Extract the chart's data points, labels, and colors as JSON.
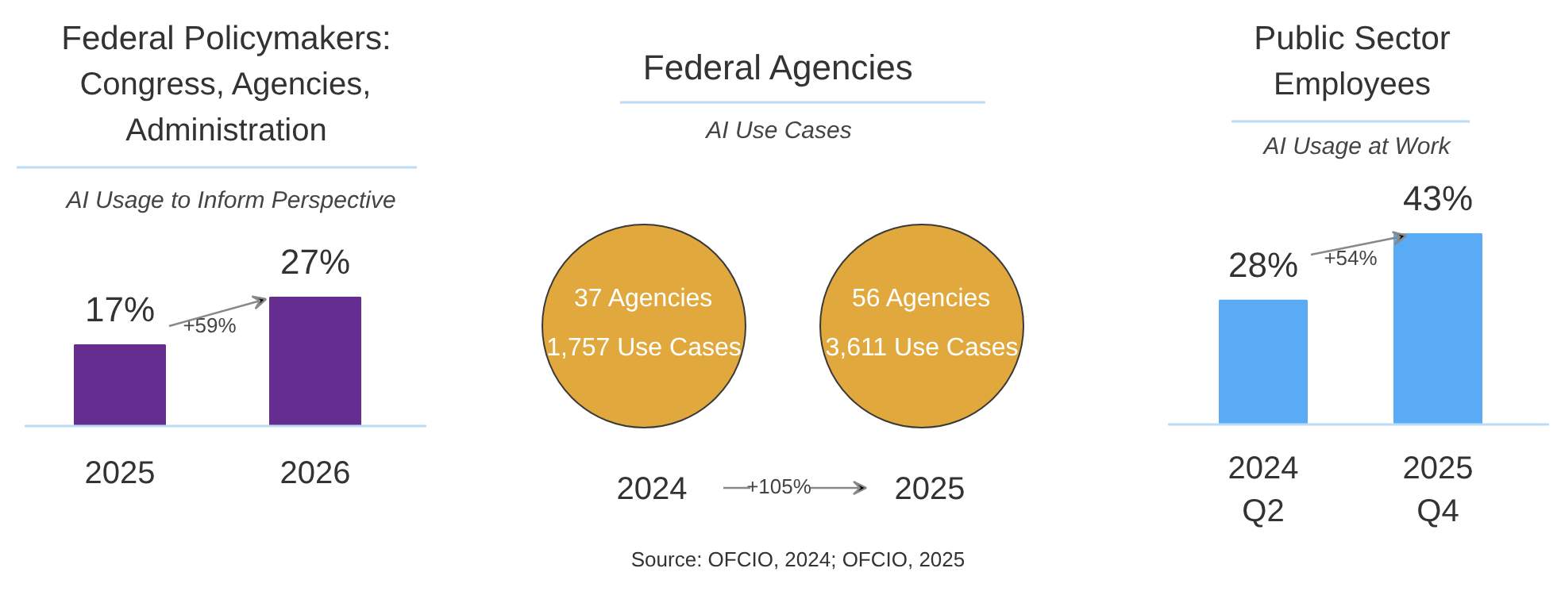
{
  "chart_data": [
    {
      "type": "bar",
      "title": "Federal Policymakers: Congress, Agencies, Administration",
      "subtitle": "AI Usage to Inform Perspective",
      "categories": [
        "2025",
        "2026"
      ],
      "values": [
        17,
        27
      ],
      "value_labels": [
        "17%",
        "27%"
      ],
      "color": "#662d91",
      "annotations": [
        "+59%"
      ]
    },
    {
      "type": "other",
      "title": "Federal Agencies",
      "subtitle": "AI Use Cases",
      "categories": [
        "2024",
        "2025"
      ],
      "value_labels": [
        "37 Agencies\n1,757 Use Cases",
        "56 Agencies\n3,611 Use Cases"
      ],
      "colors": [
        "#e1a93d",
        "#e1a93d"
      ],
      "annotations": [
        "+105%",
        "Source: OFCIO, 2024; OFCIO, 2025"
      ]
    },
    {
      "type": "bar",
      "title": "Public Sector Employees",
      "subtitle": "AI Usage at Work",
      "categories": [
        "2024\nQ2",
        "2025\nQ4"
      ],
      "values": [
        28,
        43
      ],
      "value_labels": [
        "28%",
        "43%"
      ],
      "color": "#5aabf5",
      "annotations": [
        "+54%"
      ]
    }
  ]
}
